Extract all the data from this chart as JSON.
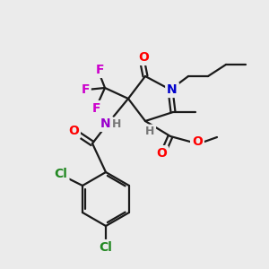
{
  "background_color": "#ebebeb",
  "bond_color": "#1a1a1a",
  "atom_colors": {
    "O": "#ff0000",
    "N_blue": "#0000cc",
    "N_purple": "#9900cc",
    "F": "#cc00cc",
    "Cl": "#228822",
    "H": "#777777",
    "C": "#1a1a1a",
    "methoxy_O": "#ff0000"
  },
  "font_size_atoms": 10,
  "font_size_small": 9
}
